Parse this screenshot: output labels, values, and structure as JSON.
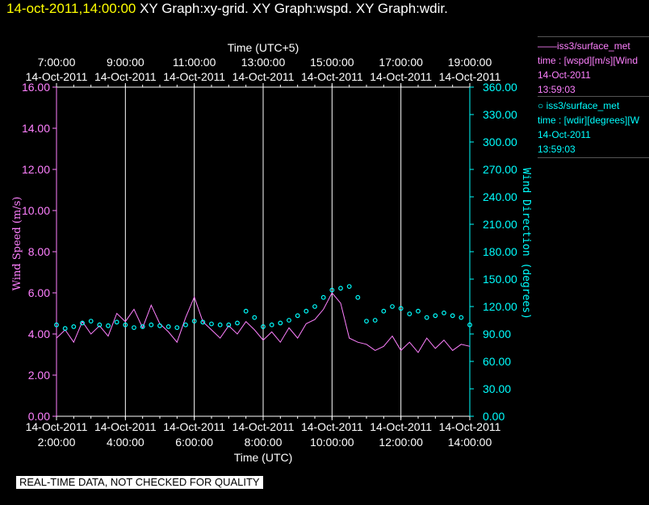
{
  "title": {
    "timestamp": "14-oct-2011,14:00:00",
    "rest": " XY Graph:xy-grid.  XY Graph:wspd.  XY Graph:wdir."
  },
  "legend": [
    {
      "lines": [
        "——iss3/surface_met",
        "time : [wspd][m/s][Wind",
        "14-Oct-2011",
        "13:59:03"
      ],
      "color": "#ff80ff"
    },
    {
      "lines": [
        "○ iss3/surface_met",
        "time : [wdir][degrees][W",
        "14-Oct-2011",
        "13:59:03"
      ],
      "color": "#00ffff"
    }
  ],
  "banner": "REAL-TIME DATA, NOT CHECKED FOR QUALITY",
  "chart_data": {
    "type": "line",
    "top_axis": {
      "title": "Time (UTC+5)",
      "ticks": [
        {
          "time": "7:00:00",
          "date": "14-Oct-2011"
        },
        {
          "time": "9:00:00",
          "date": "14-Oct-2011"
        },
        {
          "time": "11:00:00",
          "date": "14-Oct-2011"
        },
        {
          "time": "13:00:00",
          "date": "14-Oct-2011"
        },
        {
          "time": "15:00:00",
          "date": "14-Oct-2011"
        },
        {
          "time": "17:00:00",
          "date": "14-Oct-2011"
        },
        {
          "time": "19:00:00",
          "date": "14-Oct-2011"
        }
      ]
    },
    "bottom_axis": {
      "title": "Time (UTC)",
      "ticks": [
        {
          "time": "2:00:00",
          "date": "14-Oct-2011"
        },
        {
          "time": "4:00:00",
          "date": "14-Oct-2011"
        },
        {
          "time": "6:00:00",
          "date": "14-Oct-2011"
        },
        {
          "time": "8:00:00",
          "date": "14-Oct-2011"
        },
        {
          "time": "10:00:00",
          "date": "14-Oct-2011"
        },
        {
          "time": "12:00:00",
          "date": "14-Oct-2011"
        },
        {
          "time": "14:00:00",
          "date": "14-Oct-2011"
        }
      ],
      "range_hours_utc": [
        2,
        14
      ]
    },
    "left_axis": {
      "title": "Wind Speed (m/s)",
      "ylim": [
        0,
        16
      ],
      "ticks": [
        "0.00",
        "2.00",
        "4.00",
        "6.00",
        "8.00",
        "10.00",
        "12.00",
        "14.00",
        "16.00"
      ],
      "color": "#ff80ff"
    },
    "right_axis": {
      "title": "Wind Direction (degrees)",
      "ylim": [
        0,
        360
      ],
      "ticks": [
        "0.00",
        "30.00",
        "60.00",
        "90.00",
        "120.00",
        "150.00",
        "180.00",
        "210.00",
        "240.00",
        "270.00",
        "300.00",
        "330.00",
        "360.00"
      ],
      "color": "#00ffff"
    },
    "grid": "vertical",
    "series": [
      {
        "label": "wspd",
        "style": "line",
        "axis": "left",
        "color": "#ff80ff",
        "x_hours_utc": [
          2.0,
          2.25,
          2.5,
          2.75,
          3.0,
          3.25,
          3.5,
          3.75,
          4.0,
          4.25,
          4.5,
          4.75,
          5.0,
          5.25,
          5.5,
          5.75,
          6.0,
          6.25,
          6.5,
          6.75,
          7.0,
          7.25,
          7.5,
          7.75,
          8.0,
          8.25,
          8.5,
          8.75,
          9.0,
          9.25,
          9.5,
          9.75,
          10.0,
          10.25,
          10.5,
          10.75,
          11.0,
          11.25,
          11.5,
          11.75,
          12.0,
          12.25,
          12.5,
          12.75,
          13.0,
          13.25,
          13.5,
          13.75,
          14.0
        ],
        "values": [
          3.8,
          4.2,
          3.6,
          4.6,
          4.0,
          4.4,
          3.9,
          5.0,
          4.6,
          5.2,
          4.3,
          5.4,
          4.5,
          4.1,
          3.6,
          4.8,
          5.8,
          4.6,
          4.2,
          3.8,
          4.4,
          4.0,
          4.6,
          4.2,
          3.7,
          4.1,
          3.6,
          4.3,
          3.8,
          4.5,
          4.7,
          5.2,
          6.0,
          5.5,
          3.8,
          3.6,
          3.5,
          3.2,
          3.4,
          3.9,
          3.2,
          3.6,
          3.1,
          3.8,
          3.3,
          3.7,
          3.2,
          3.5,
          3.4
        ]
      },
      {
        "label": "wdir",
        "style": "points",
        "axis": "right",
        "color": "#00ffff",
        "x_hours_utc": [
          2.0,
          2.25,
          2.5,
          2.75,
          3.0,
          3.25,
          3.5,
          3.75,
          4.0,
          4.25,
          4.5,
          4.75,
          5.0,
          5.25,
          5.5,
          5.75,
          6.0,
          6.25,
          6.5,
          6.75,
          7.0,
          7.25,
          7.5,
          7.75,
          8.0,
          8.25,
          8.5,
          8.75,
          9.0,
          9.25,
          9.5,
          9.75,
          10.0,
          10.25,
          10.5,
          10.75,
          11.0,
          11.25,
          11.5,
          11.75,
          12.0,
          12.25,
          12.5,
          12.75,
          13.0,
          13.25,
          13.5,
          13.75,
          14.0
        ],
        "values": [
          100,
          96,
          98,
          102,
          104,
          100,
          99,
          103,
          100,
          97,
          98,
          100,
          99,
          98,
          97,
          100,
          104,
          103,
          101,
          100,
          100,
          102,
          115,
          108,
          98,
          100,
          102,
          105,
          110,
          115,
          120,
          130,
          138,
          140,
          142,
          130,
          104,
          105,
          115,
          120,
          118,
          112,
          115,
          108,
          110,
          113,
          110,
          108,
          100
        ]
      }
    ]
  }
}
